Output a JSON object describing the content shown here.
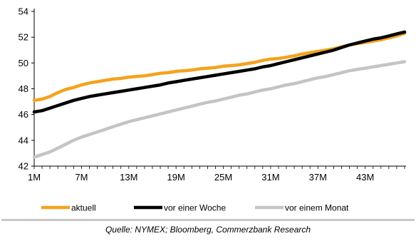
{
  "chart_data": {
    "type": "line",
    "title": "",
    "xlabel": "",
    "ylabel": "",
    "ylim": [
      42,
      54
    ],
    "yticks": [
      42,
      44,
      46,
      48,
      50,
      52,
      54
    ],
    "x_tick_labels": [
      "1M",
      "7M",
      "13M",
      "19M",
      "25M",
      "31M",
      "37M",
      "43M"
    ],
    "x_tick_positions": [
      1,
      7,
      13,
      19,
      25,
      31,
      37,
      43
    ],
    "xlim": [
      1,
      48
    ],
    "grid": false,
    "legend_position": "bottom",
    "x": [
      1,
      2,
      3,
      4,
      5,
      6,
      7,
      8,
      9,
      10,
      11,
      12,
      13,
      14,
      15,
      16,
      17,
      18,
      19,
      20,
      21,
      22,
      23,
      24,
      25,
      26,
      27,
      28,
      29,
      30,
      31,
      32,
      33,
      34,
      35,
      36,
      37,
      38,
      39,
      40,
      41,
      42,
      43,
      44,
      45,
      46,
      47,
      48
    ],
    "series": [
      {
        "name": "aktuell",
        "color": "#f5a21d",
        "values": [
          47.1,
          47.2,
          47.4,
          47.7,
          47.95,
          48.1,
          48.3,
          48.45,
          48.55,
          48.65,
          48.75,
          48.8,
          48.9,
          48.95,
          49.0,
          49.1,
          49.2,
          49.25,
          49.35,
          49.4,
          49.45,
          49.55,
          49.6,
          49.65,
          49.75,
          49.8,
          49.85,
          49.95,
          50.05,
          50.2,
          50.3,
          50.35,
          50.45,
          50.55,
          50.7,
          50.8,
          50.9,
          51.0,
          51.1,
          51.25,
          51.4,
          51.5,
          51.6,
          51.7,
          51.8,
          51.95,
          52.1,
          52.3
        ]
      },
      {
        "name": "vor einer Woche",
        "color": "#000000",
        "values": [
          46.2,
          46.3,
          46.5,
          46.7,
          46.9,
          47.1,
          47.25,
          47.4,
          47.5,
          47.6,
          47.7,
          47.8,
          47.9,
          48.0,
          48.1,
          48.2,
          48.3,
          48.45,
          48.55,
          48.65,
          48.75,
          48.85,
          48.95,
          49.05,
          49.15,
          49.25,
          49.35,
          49.45,
          49.55,
          49.7,
          49.8,
          49.95,
          50.1,
          50.25,
          50.4,
          50.55,
          50.7,
          50.85,
          51.0,
          51.2,
          51.4,
          51.55,
          51.7,
          51.85,
          51.95,
          52.1,
          52.25,
          52.4
        ]
      },
      {
        "name": "vor einem Monat",
        "color": "#c4c4c4",
        "values": [
          42.7,
          42.9,
          43.1,
          43.4,
          43.7,
          44.0,
          44.25,
          44.45,
          44.65,
          44.85,
          45.05,
          45.25,
          45.45,
          45.6,
          45.75,
          45.9,
          46.05,
          46.2,
          46.35,
          46.5,
          46.65,
          46.8,
          46.95,
          47.05,
          47.2,
          47.35,
          47.5,
          47.6,
          47.75,
          47.9,
          48.0,
          48.15,
          48.3,
          48.4,
          48.55,
          48.7,
          48.85,
          48.95,
          49.1,
          49.25,
          49.4,
          49.5,
          49.6,
          49.7,
          49.8,
          49.9,
          50.0,
          50.1
        ]
      }
    ]
  },
  "source_text": "Quelle: NYMEX; Bloomberg, Commerzbank Research"
}
